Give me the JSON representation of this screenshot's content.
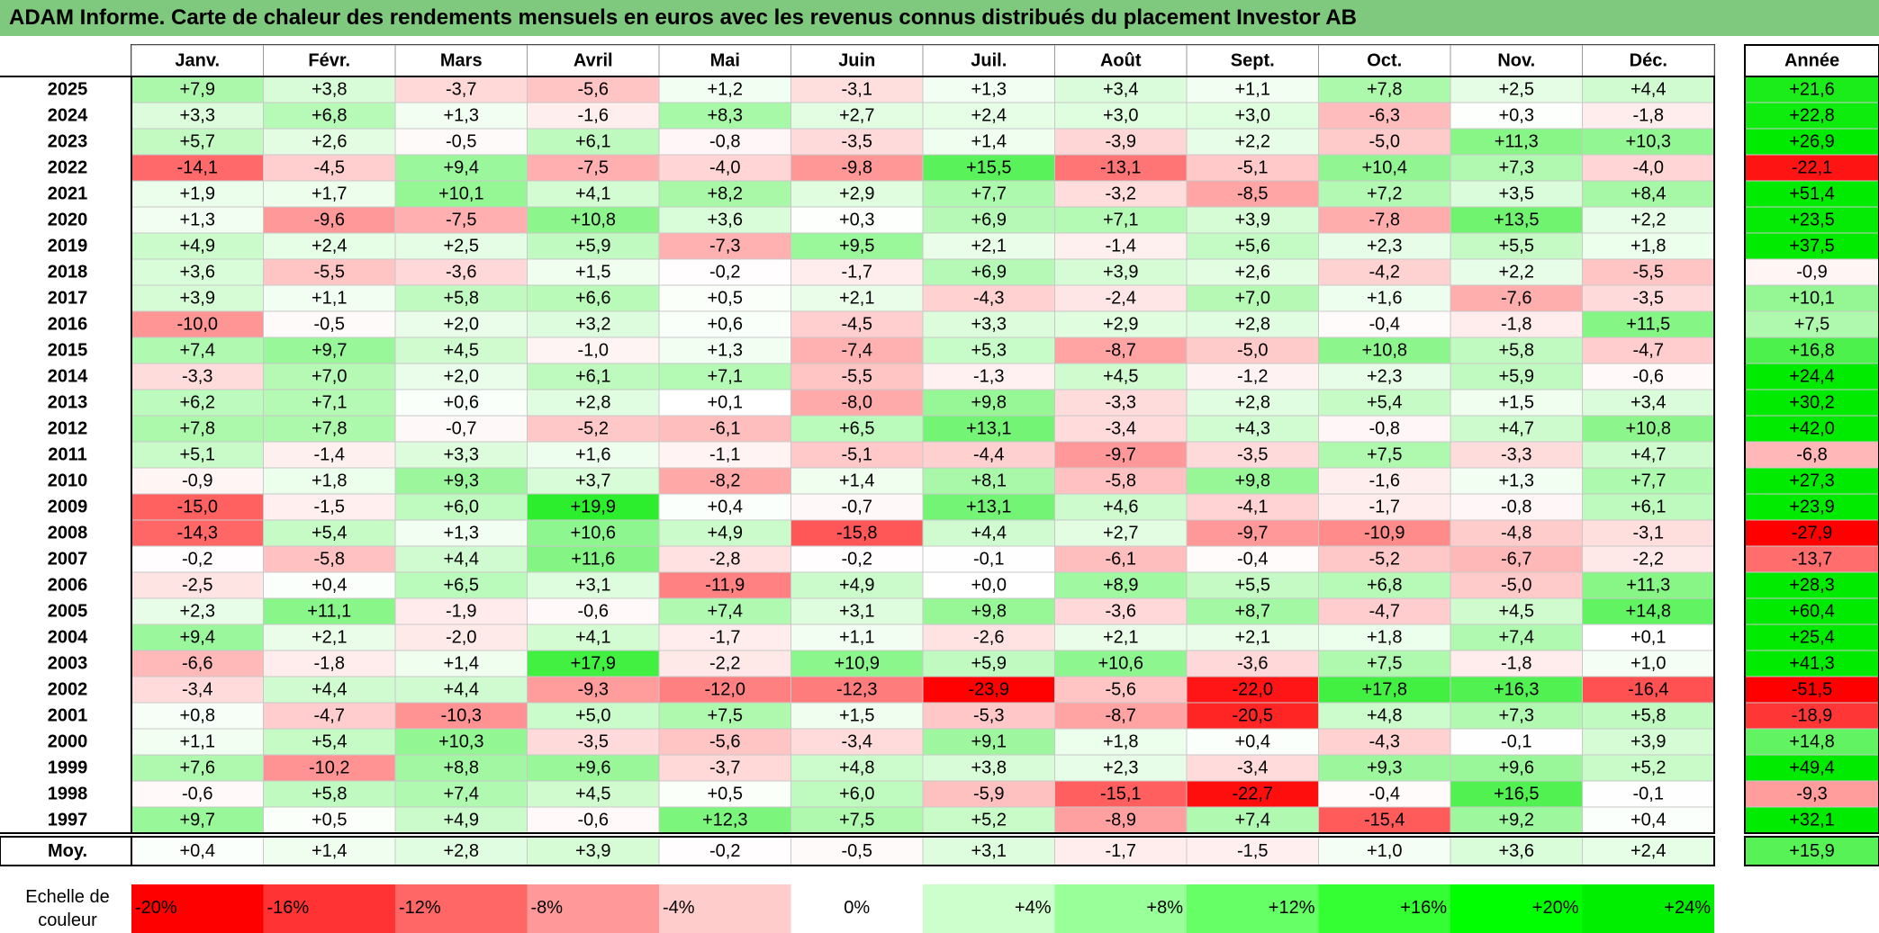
{
  "title": "ADAM Informe. Carte de chaleur des rendements mensuels en euros avec les revenus connus distribués du placement Investor AB",
  "chart_data": {
    "type": "heatmap",
    "title": "ADAM Informe. Carte de chaleur des rendements mensuels en euros avec les revenus connus distribués du placement Investor AB",
    "columns": [
      "Janv.",
      "Févr.",
      "Mars",
      "Avril",
      "Mai",
      "Juin",
      "Juil.",
      "Août",
      "Sept.",
      "Oct.",
      "Nov.",
      "Déc."
    ],
    "year_column": "Année",
    "rows": [
      {
        "year": "2025",
        "months": [
          "+7,9",
          "+3,8",
          "-3,7",
          "-5,6",
          "+1,2",
          "-3,1",
          "+1,3",
          "+3,4",
          "+1,1",
          "+7,8",
          "+2,5",
          "+4,4"
        ],
        "annual": "+21,6"
      },
      {
        "year": "2024",
        "months": [
          "+3,3",
          "+6,8",
          "+1,3",
          "-1,6",
          "+8,3",
          "+2,7",
          "+2,4",
          "+3,0",
          "+3,0",
          "-6,3",
          "+0,3",
          "-1,8"
        ],
        "annual": "+22,8"
      },
      {
        "year": "2023",
        "months": [
          "+5,7",
          "+2,6",
          "-0,5",
          "+6,1",
          "-0,8",
          "-3,5",
          "+1,4",
          "-3,9",
          "+2,2",
          "-5,0",
          "+11,3",
          "+10,3"
        ],
        "annual": "+26,9"
      },
      {
        "year": "2022",
        "months": [
          "-14,1",
          "-4,5",
          "+9,4",
          "-7,5",
          "-4,0",
          "-9,8",
          "+15,5",
          "-13,1",
          "-5,1",
          "+10,4",
          "+7,3",
          "-4,0"
        ],
        "annual": "-22,1"
      },
      {
        "year": "2021",
        "months": [
          "+1,9",
          "+1,7",
          "+10,1",
          "+4,1",
          "+8,2",
          "+2,9",
          "+7,7",
          "-3,2",
          "-8,5",
          "+7,2",
          "+3,5",
          "+8,4"
        ],
        "annual": "+51,4"
      },
      {
        "year": "2020",
        "months": [
          "+1,3",
          "-9,6",
          "-7,5",
          "+10,8",
          "+3,6",
          "+0,3",
          "+6,9",
          "+7,1",
          "+3,9",
          "-7,8",
          "+13,5",
          "+2,2"
        ],
        "annual": "+23,5"
      },
      {
        "year": "2019",
        "months": [
          "+4,9",
          "+2,4",
          "+2,5",
          "+5,9",
          "-7,3",
          "+9,5",
          "+2,1",
          "-1,4",
          "+5,6",
          "+2,3",
          "+5,5",
          "+1,8"
        ],
        "annual": "+37,5"
      },
      {
        "year": "2018",
        "months": [
          "+3,6",
          "-5,5",
          "-3,6",
          "+1,5",
          "-0,2",
          "-1,7",
          "+6,9",
          "+3,9",
          "+2,6",
          "-4,2",
          "+2,2",
          "-5,5"
        ],
        "annual": "-0,9"
      },
      {
        "year": "2017",
        "months": [
          "+3,9",
          "+1,1",
          "+5,8",
          "+6,6",
          "+0,5",
          "+2,1",
          "-4,3",
          "-2,4",
          "+7,0",
          "+1,6",
          "-7,6",
          "-3,5"
        ],
        "annual": "+10,1"
      },
      {
        "year": "2016",
        "months": [
          "-10,0",
          "-0,5",
          "+2,0",
          "+3,2",
          "+0,6",
          "-4,5",
          "+3,3",
          "+2,9",
          "+2,8",
          "-0,4",
          "-1,8",
          "+11,5"
        ],
        "annual": "+7,5"
      },
      {
        "year": "2015",
        "months": [
          "+7,4",
          "+9,7",
          "+4,5",
          "-1,0",
          "+1,3",
          "-7,4",
          "+5,3",
          "-8,7",
          "-5,0",
          "+10,8",
          "+5,8",
          "-4,7"
        ],
        "annual": "+16,8"
      },
      {
        "year": "2014",
        "months": [
          "-3,3",
          "+7,0",
          "+2,0",
          "+6,1",
          "+7,1",
          "-5,5",
          "-1,3",
          "+4,5",
          "-1,2",
          "+2,3",
          "+5,9",
          "-0,6"
        ],
        "annual": "+24,4"
      },
      {
        "year": "2013",
        "months": [
          "+6,2",
          "+7,1",
          "+0,6",
          "+2,8",
          "+0,1",
          "-8,0",
          "+9,8",
          "-3,3",
          "+2,8",
          "+5,4",
          "+1,5",
          "+3,4"
        ],
        "annual": "+30,2"
      },
      {
        "year": "2012",
        "months": [
          "+7,8",
          "+7,8",
          "-0,7",
          "-5,2",
          "-6,1",
          "+6,5",
          "+13,1",
          "-3,4",
          "+4,3",
          "-0,8",
          "+4,7",
          "+10,8"
        ],
        "annual": "+42,0"
      },
      {
        "year": "2011",
        "months": [
          "+5,1",
          "-1,4",
          "+3,3",
          "+1,6",
          "-1,1",
          "-5,1",
          "-4,4",
          "-9,7",
          "-3,5",
          "+7,5",
          "-3,3",
          "+4,7"
        ],
        "annual": "-6,8"
      },
      {
        "year": "2010",
        "months": [
          "-0,9",
          "+1,8",
          "+9,3",
          "+3,7",
          "-8,2",
          "+1,4",
          "+8,1",
          "-5,8",
          "+9,8",
          "-1,6",
          "+1,3",
          "+7,7"
        ],
        "annual": "+27,3"
      },
      {
        "year": "2009",
        "months": [
          "-15,0",
          "-1,5",
          "+6,0",
          "+19,9",
          "+0,4",
          "-0,7",
          "+13,1",
          "+4,6",
          "-4,1",
          "-1,7",
          "-0,8",
          "+6,1"
        ],
        "annual": "+23,9"
      },
      {
        "year": "2008",
        "months": [
          "-14,3",
          "+5,4",
          "+1,3",
          "+10,6",
          "+4,9",
          "-15,8",
          "+4,4",
          "+2,7",
          "-9,7",
          "-10,9",
          "-4,8",
          "-3,1"
        ],
        "annual": "-27,9"
      },
      {
        "year": "2007",
        "months": [
          "-0,2",
          "-5,8",
          "+4,4",
          "+11,6",
          "-2,8",
          "-0,2",
          "-0,1",
          "-6,1",
          "-0,4",
          "-5,2",
          "-6,7",
          "-2,2"
        ],
        "annual": "-13,7"
      },
      {
        "year": "2006",
        "months": [
          "-2,5",
          "+0,4",
          "+6,5",
          "+3,1",
          "-11,9",
          "+4,9",
          "+0,0",
          "+8,9",
          "+5,5",
          "+6,8",
          "-5,0",
          "+11,3"
        ],
        "annual": "+28,3"
      },
      {
        "year": "2005",
        "months": [
          "+2,3",
          "+11,1",
          "-1,9",
          "-0,6",
          "+7,4",
          "+3,1",
          "+9,8",
          "-3,6",
          "+8,7",
          "-4,7",
          "+4,5",
          "+14,8"
        ],
        "annual": "+60,4"
      },
      {
        "year": "2004",
        "months": [
          "+9,4",
          "+2,1",
          "-2,0",
          "+4,1",
          "-1,7",
          "+1,1",
          "-2,6",
          "+2,1",
          "+2,1",
          "+1,8",
          "+7,4",
          "+0,1"
        ],
        "annual": "+25,4"
      },
      {
        "year": "2003",
        "months": [
          "-6,6",
          "-1,8",
          "+1,4",
          "+17,9",
          "-2,2",
          "+10,9",
          "+5,9",
          "+10,6",
          "-3,6",
          "+7,5",
          "-1,8",
          "+1,0"
        ],
        "annual": "+41,3"
      },
      {
        "year": "2002",
        "months": [
          "-3,4",
          "+4,4",
          "+4,4",
          "-9,3",
          "-12,0",
          "-12,3",
          "-23,9",
          "-5,6",
          "-22,0",
          "+17,8",
          "+16,3",
          "-16,4"
        ],
        "annual": "-51,5"
      },
      {
        "year": "2001",
        "months": [
          "+0,8",
          "-4,7",
          "-10,3",
          "+5,0",
          "+7,5",
          "+1,5",
          "-5,3",
          "-8,7",
          "-20,5",
          "+4,8",
          "+7,3",
          "+5,8"
        ],
        "annual": "-18,9"
      },
      {
        "year": "2000",
        "months": [
          "+1,1",
          "+5,4",
          "+10,3",
          "-3,5",
          "-5,6",
          "-3,4",
          "+9,1",
          "+1,8",
          "+0,4",
          "-4,3",
          "-0,1",
          "+3,9"
        ],
        "annual": "+14,8"
      },
      {
        "year": "1999",
        "months": [
          "+7,6",
          "-10,2",
          "+8,8",
          "+9,6",
          "-3,7",
          "+4,8",
          "+3,8",
          "+2,3",
          "-3,4",
          "+9,3",
          "+9,6",
          "+5,2"
        ],
        "annual": "+49,4"
      },
      {
        "year": "1998",
        "months": [
          "-0,6",
          "+5,8",
          "+7,4",
          "+4,5",
          "+0,5",
          "+6,0",
          "-5,9",
          "-15,1",
          "-22,7",
          "-0,4",
          "+16,5",
          "-0,1"
        ],
        "annual": "-9,3"
      },
      {
        "year": "1997",
        "months": [
          "+9,7",
          "+0,5",
          "+4,9",
          "-0,6",
          "+12,3",
          "+7,5",
          "+5,2",
          "-8,9",
          "+7,4",
          "-15,4",
          "+9,2",
          "+0,4"
        ],
        "annual": "+32,1"
      }
    ],
    "average": {
      "label": "Moy.",
      "months": [
        "+0,4",
        "+1,4",
        "+2,8",
        "+3,9",
        "-0,2",
        "-0,5",
        "+3,1",
        "-1,7",
        "-1,5",
        "+1,0",
        "+3,6",
        "+2,4"
      ],
      "annual": "+15,9"
    },
    "scale": {
      "label_line1": "Echelle de",
      "label_line2": "couleur",
      "steps": [
        "-20%",
        "-16%",
        "-12%",
        "-8%",
        "-4%",
        "0%",
        "+4%",
        "+8%",
        "+12%",
        "+16%",
        "+20%",
        "+24%"
      ],
      "colors": [
        "#ff0000",
        "#ff3333",
        "#ff6666",
        "#ff9999",
        "#ffcccc",
        "#ffffff",
        "#ccffcc",
        "#99ff99",
        "#66ff66",
        "#33ff33",
        "#00ff00",
        "#00ee00"
      ]
    },
    "colors": {
      "negative_max": "#ff0000",
      "neutral": "#ffffff",
      "positive_max": "#00ff00",
      "title_bg": "#7ec97e"
    }
  }
}
